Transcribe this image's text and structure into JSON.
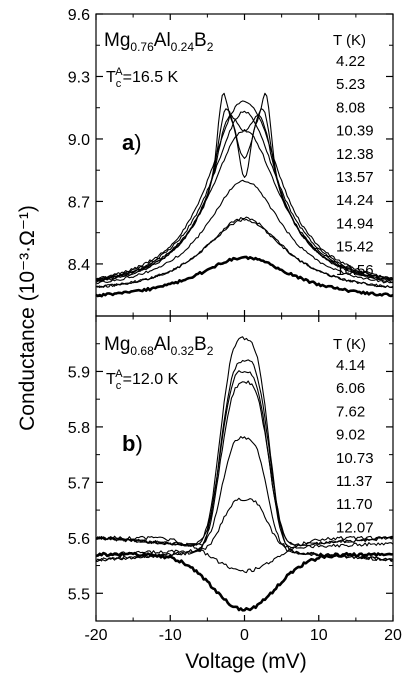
{
  "figure": {
    "y_axis_label": "Conductance (10⁻³·Ω⁻¹)",
    "x_axis_label": "Voltage (mV)"
  },
  "chart_data": [
    {
      "panel": "a)",
      "type": "line",
      "sample": {
        "base": [
          "Mg",
          "Al",
          "B"
        ],
        "subscripts": [
          "0.76",
          "0.24",
          "2"
        ]
      },
      "tc_label": {
        "prefix": "T",
        "sub": "c",
        "sup": "A",
        "value": "=16.5 K"
      },
      "legend_title": "T (K)",
      "legend_entries": [
        "4.22",
        "5.23",
        "8.08",
        "10.39",
        "12.38",
        "13.57",
        "14.24",
        "14.94",
        "15.42",
        "16.56"
      ],
      "xlim": [
        -20,
        20
      ],
      "ylim": [
        8.15,
        9.6
      ],
      "yticks": [
        "8.4",
        "8.7",
        "9.0",
        "9.3",
        "9.6"
      ],
      "ytick_values": [
        8.4,
        8.7,
        9.0,
        9.3,
        9.6
      ],
      "series": [
        {
          "T": 4.22,
          "bg": 8.27,
          "peak": 9.19,
          "w": 5.0,
          "dip": 0.38,
          "ds": 1.1,
          "pk": 0.26,
          "pc": 3.0,
          "ps": 0.85
        },
        {
          "T": 5.23,
          "bg": 8.26,
          "peak": 9.18,
          "w": 5.1,
          "dip": 0.27,
          "ds": 1.4,
          "pk": 0.16,
          "pc": 2.7,
          "ps": 1.1
        },
        {
          "T": 8.08,
          "bg": 8.26,
          "peak": 9.17,
          "w": 5.2,
          "dip": 0.14,
          "ds": 1.7,
          "pk": 0.1,
          "pc": 2.4,
          "ps": 1.4
        },
        {
          "T": 10.39,
          "bg": 8.26,
          "peak": 9.24,
          "w": 5.5,
          "dip": 0.06,
          "ds": 2.0,
          "pk": 0.0,
          "pc": 2.0,
          "ps": 1.0
        },
        {
          "T": 12.38,
          "bg": 8.26,
          "peak": 9.13,
          "w": 5.7,
          "dip": 0.0,
          "ds": 1.0,
          "pk": 0.0,
          "pc": 0.0,
          "ps": 1.0
        },
        {
          "T": 13.57,
          "bg": 8.26,
          "peak": 9.04,
          "w": 5.9,
          "dip": 0.0,
          "ds": 1.0,
          "pk": 0.0,
          "pc": 0.0,
          "ps": 1.0
        },
        {
          "T": 14.24,
          "bg": 8.26,
          "peak": 8.8,
          "w": 6.3,
          "dip": 0.0,
          "ds": 1.0,
          "pk": 0.0,
          "pc": 0.0,
          "ps": 1.0
        },
        {
          "T": 14.94,
          "bg": 8.25,
          "peak": 8.62,
          "w": 6.8,
          "dip": 0.0,
          "ds": 1.0,
          "pk": 0.0,
          "pc": 0.0,
          "ps": 1.0
        },
        {
          "T": 15.42,
          "bg": 8.25,
          "peak": 8.61,
          "w": 6.9,
          "dip": 0.0,
          "ds": 1.0,
          "pk": 0.0,
          "pc": 0.0,
          "ps": 1.0
        },
        {
          "T": 16.56,
          "bg": 8.22,
          "peak": 8.43,
          "w": 8.0,
          "dip": 0.0,
          "ds": 1.0,
          "pk": 0.0,
          "pc": 0.0,
          "ps": 1.0,
          "bold": true
        }
      ]
    },
    {
      "panel": "b)",
      "type": "line",
      "sample": {
        "base": [
          "Mg",
          "Al",
          "B"
        ],
        "subscripts": [
          "0.68",
          "0.32",
          "2"
        ]
      },
      "tc_label": {
        "prefix": "T",
        "sub": "c",
        "sup": "A",
        "value": "=12.0 K"
      },
      "legend_title": "T (K)",
      "legend_entries": [
        "4.14",
        "6.06",
        "7.62",
        "9.02",
        "10.73",
        "11.37",
        "11.70",
        "12.07"
      ],
      "xlim": [
        -20,
        20
      ],
      "ylim": [
        5.45,
        6.0
      ],
      "yticks": [
        "5.5",
        "5.6",
        "5.7",
        "5.8",
        "5.9"
      ],
      "ytick_values": [
        5.5,
        5.6,
        5.7,
        5.8,
        5.9
      ],
      "series": [
        {
          "T": 4.14,
          "bg": 5.58,
          "peak": 5.96,
          "w": 3.8,
          "slope": 0.002
        },
        {
          "T": 6.06,
          "bg": 5.58,
          "peak": 5.92,
          "w": 3.8,
          "slope": 0.002
        },
        {
          "T": 7.62,
          "bg": 5.58,
          "peak": 5.9,
          "w": 3.8,
          "slope": 0.002
        },
        {
          "T": 9.02,
          "bg": 5.58,
          "peak": 5.88,
          "w": 3.8,
          "slope": 0.002
        },
        {
          "T": 10.73,
          "bg": 5.58,
          "peak": 5.78,
          "w": 3.6,
          "slope": 0.002
        },
        {
          "T": 11.37,
          "bg": 5.58,
          "peak": 5.67,
          "w": 3.6,
          "slope": 0.001
        },
        {
          "T": 11.7,
          "bg": 5.6,
          "peak": 5.54,
          "w": 6.0,
          "slope": 0.0
        },
        {
          "T": 12.07,
          "bg": 5.57,
          "peak": 5.47,
          "w": 6.0,
          "slope": 0.0,
          "bold": true
        }
      ]
    }
  ],
  "xticks": [
    "-20",
    "-10",
    "0",
    "10",
    "20"
  ],
  "xtick_values": [
    -20,
    -10,
    0,
    10,
    20
  ]
}
